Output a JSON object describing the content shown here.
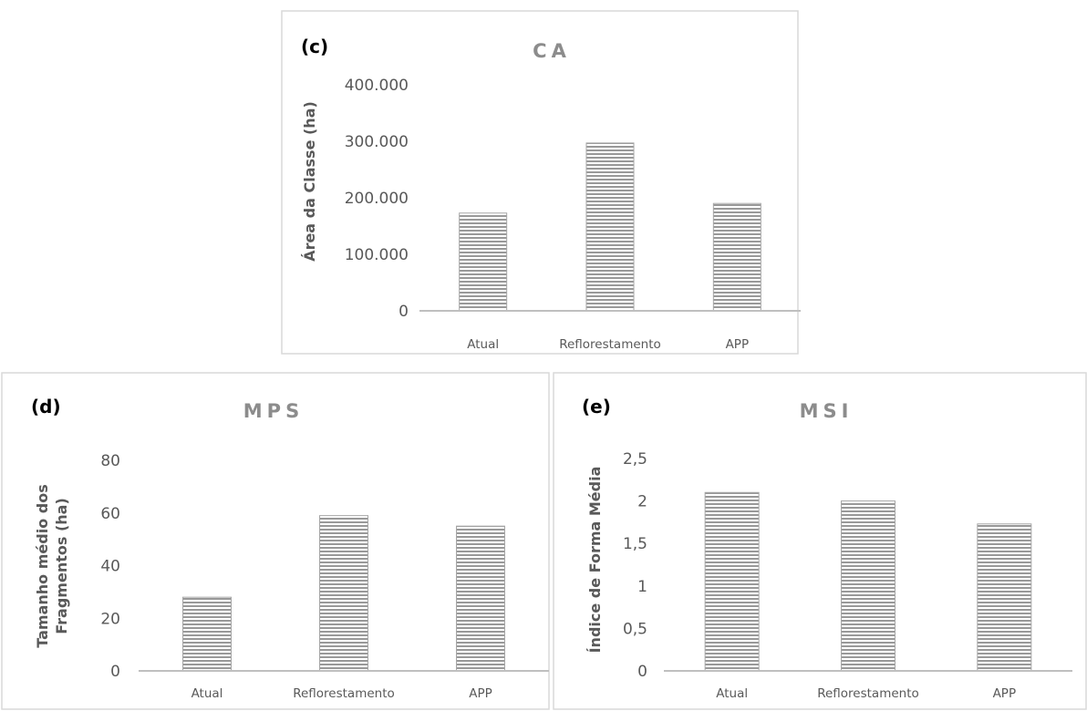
{
  "chart_data": [
    {
      "type": "bar",
      "panel_label": "(c)",
      "title": "CA",
      "ylabel": [
        "Área da Classe (ha)"
      ],
      "categories": [
        "Atual",
        "Reflorestamento",
        "APP"
      ],
      "values": [
        173000,
        297000,
        190000
      ],
      "yticks": [
        "0",
        "100.000",
        "200.000",
        "300.000",
        "400.000"
      ],
      "ylim": [
        0,
        400000
      ],
      "grid": false,
      "legend": "none"
    },
    {
      "type": "bar",
      "panel_label": "(d)",
      "title": "MPS",
      "ylabel": [
        "Tamanho médio dos",
        "Fragmentos (ha)"
      ],
      "categories": [
        "Atual",
        "Reflorestamento",
        "APP"
      ],
      "values": [
        28,
        59,
        55
      ],
      "yticks": [
        "0",
        "20",
        "40",
        "60",
        "80"
      ],
      "ylim": [
        0,
        80
      ],
      "grid": false,
      "legend": "none"
    },
    {
      "type": "bar",
      "panel_label": "(e)",
      "title": "MSI",
      "ylabel": [
        "Índice de Forma Média"
      ],
      "categories": [
        "Atual",
        "Reflorestamento",
        "APP"
      ],
      "values": [
        2.1,
        2.0,
        1.73
      ],
      "yticks": [
        "0",
        "0,5",
        "1",
        "1,5",
        "2",
        "2,5"
      ],
      "ylim": [
        0,
        2.5
      ],
      "grid": false,
      "legend": "none"
    }
  ]
}
